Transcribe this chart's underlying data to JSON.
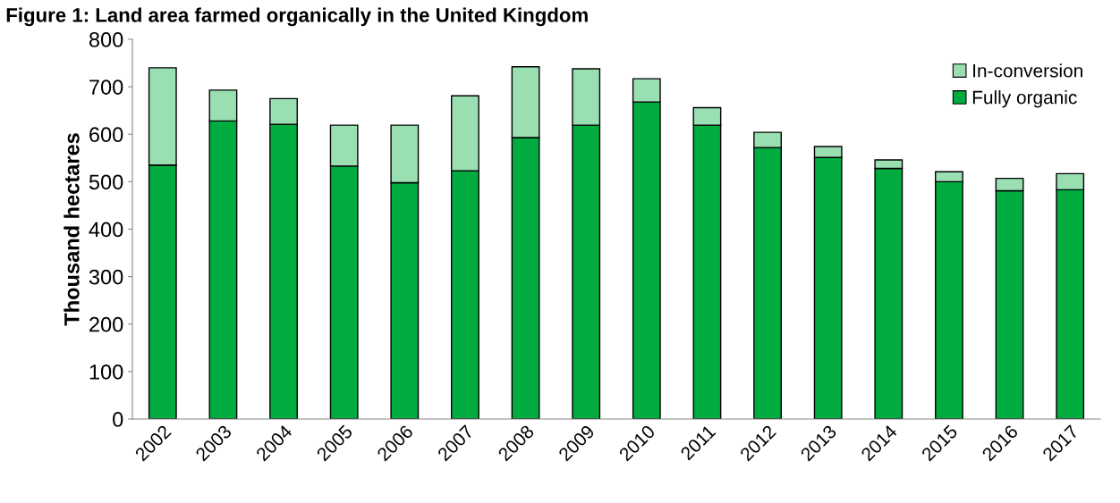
{
  "chart_data": {
    "type": "bar",
    "stacked": true,
    "title": "Figure 1: Land area farmed organically in the United Kingdom",
    "ylabel": "Thousand hectares",
    "categories": [
      "2002",
      "2003",
      "2004",
      "2005",
      "2006",
      "2007",
      "2008",
      "2009",
      "2010",
      "2011",
      "2012",
      "2013",
      "2014",
      "2015",
      "2016",
      "2017"
    ],
    "series": [
      {
        "name": "Fully organic",
        "color": "#00ac3f",
        "values": [
          535,
          628,
          621,
          533,
          498,
          523,
          593,
          619,
          668,
          619,
          572,
          551,
          528,
          500,
          481,
          483
        ]
      },
      {
        "name": "In-conversion",
        "color": "#99dfb2",
        "values": [
          205,
          65,
          54,
          86,
          121,
          158,
          149,
          119,
          49,
          37,
          32,
          23,
          18,
          21,
          26,
          34
        ]
      }
    ],
    "ylim": [
      0,
      800
    ],
    "yticks": [
      0,
      100,
      200,
      300,
      400,
      500,
      600,
      700,
      800
    ],
    "grid": false,
    "legend": "top right"
  }
}
